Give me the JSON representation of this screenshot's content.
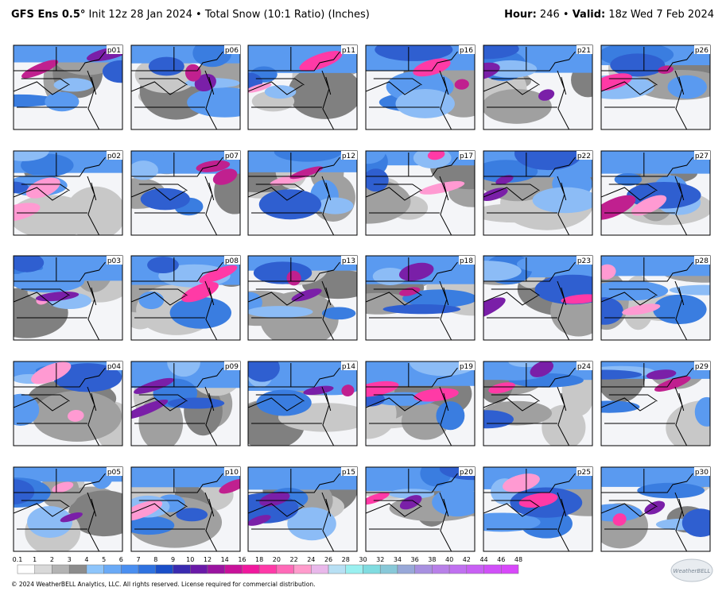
{
  "header": {
    "model": "GFS Ens 0.5°",
    "init": "Init 12z 28 Jan 2024",
    "product": "Total Snow (10:1 Ratio) (Inches)",
    "hour_label": "Hour:",
    "hour": "246",
    "valid_label": "Valid:",
    "valid": "18z Wed 7 Feb 2024"
  },
  "panels": [
    [
      "p01",
      "p06",
      "p11",
      "p16",
      "p21",
      "p26"
    ],
    [
      "p02",
      "p07",
      "p12",
      "p17",
      "p22",
      "p27"
    ],
    [
      "p03",
      "p08",
      "p13",
      "p18",
      "p23",
      "p28"
    ],
    [
      "p04",
      "p09",
      "p14",
      "p19",
      "p24",
      "p29"
    ],
    [
      "p05",
      "p10",
      "p15",
      "p20",
      "p25",
      "p30"
    ]
  ],
  "colorbar": {
    "labels": [
      "0.1",
      "1",
      "2",
      "3",
      "4",
      "5",
      "6",
      "7",
      "8",
      "9",
      "10",
      "12",
      "14",
      "16",
      "18",
      "20",
      "22",
      "24",
      "26",
      "28",
      "30",
      "32",
      "34",
      "36",
      "38",
      "40",
      "42",
      "44",
      "46",
      "48"
    ]
  },
  "footer": {
    "copyright": "© 2024 WeatherBELL Analytics, LLC. All rights reserved. License required for commercial distribution.",
    "logo": "WeatherBELL"
  }
}
